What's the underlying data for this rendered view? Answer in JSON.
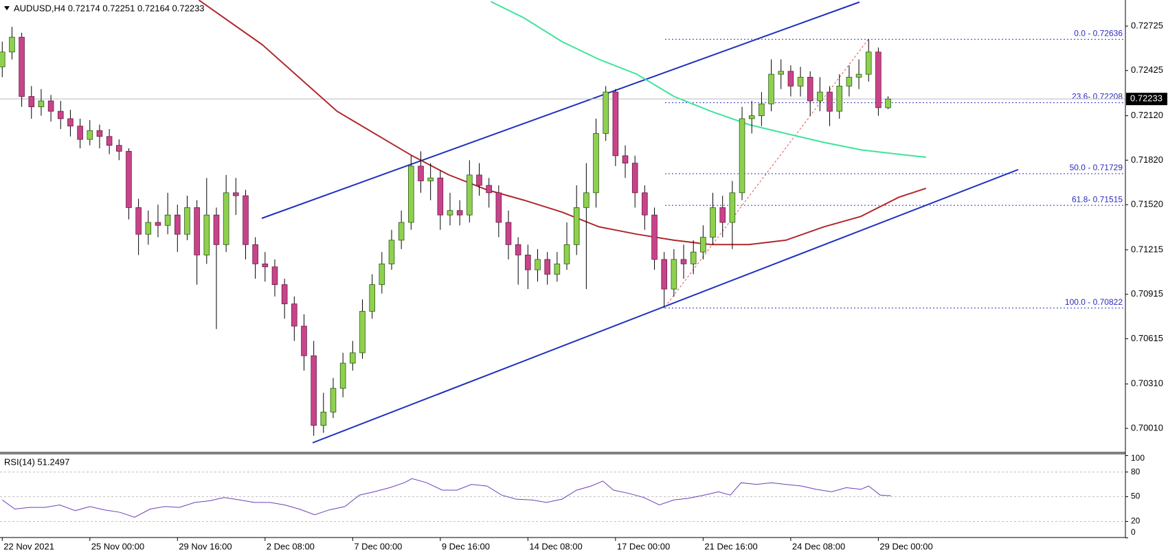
{
  "chart_data": [
    {
      "type": "candlestick",
      "title": "AUDUSD,H4  0.72174 0.72251 0.72164 0.72233",
      "xlim": [
        -0.23,
        115.38
      ],
      "ylim": [
        0.69857,
        0.72901
      ],
      "yticks": [
        0.72725,
        0.72425,
        {
          "value": 0.7212,
          "label": "0.72120"
        },
        {
          "value": 0.7182,
          "label": "0.71820"
        },
        {
          "value": 0.7152,
          "label": "0.71520"
        },
        0.71215,
        0.70915,
        0.70615,
        {
          "value": 0.7031,
          "label": "0.70310"
        },
        {
          "value": 0.7001,
          "label": "0.70010"
        }
      ],
      "up_color": "#8fd14f",
      "down_color": "#c8448a",
      "x": [
        0,
        1,
        2,
        3,
        4,
        5,
        6,
        7,
        8,
        9,
        10,
        11,
        12,
        13,
        14,
        15,
        16,
        17,
        18,
        19,
        20,
        21,
        22,
        23,
        24,
        25,
        26,
        27,
        28,
        29,
        30,
        31,
        32,
        33,
        34,
        35,
        36,
        37,
        38,
        39,
        40,
        41,
        42,
        43,
        44,
        45,
        46,
        47,
        48,
        49,
        50,
        51,
        52,
        53,
        54,
        55,
        56,
        57,
        58,
        59,
        60,
        61,
        62,
        63,
        64,
        65,
        66,
        67,
        68,
        69,
        70,
        71,
        72,
        73,
        74,
        75,
        76,
        77,
        78,
        79,
        80,
        81,
        82,
        83,
        84,
        85,
        86,
        87,
        88,
        89,
        90,
        91
      ],
      "open": [
        0.7245,
        0.7255,
        0.7265,
        0.7225,
        0.7218,
        0.7222,
        0.7215,
        0.721,
        0.7205,
        0.7196,
        0.7202,
        0.7198,
        0.7192,
        0.7188,
        0.715,
        0.7132,
        0.714,
        0.7138,
        0.7145,
        0.7132,
        0.715,
        0.7118,
        0.7145,
        0.7125,
        0.716,
        0.7158,
        0.7125,
        0.7112,
        0.711,
        0.7098,
        0.7085,
        0.707,
        0.705,
        0.7003,
        0.7012,
        0.7028,
        0.7045,
        0.7052,
        0.708,
        0.7098,
        0.7112,
        0.7128,
        0.714,
        0.7178,
        0.7168,
        0.717,
        0.7145,
        0.7148,
        0.7145,
        0.7172,
        0.7165,
        0.716,
        0.714,
        0.7125,
        0.7118,
        0.7108,
        0.7115,
        0.7105,
        0.7112,
        0.7125,
        0.715,
        0.716,
        0.72,
        0.7228,
        0.7185,
        0.718,
        0.716,
        0.7145,
        0.7115,
        0.7095,
        0.7115,
        0.7112,
        0.712,
        0.713,
        0.715,
        0.714,
        0.716,
        0.721,
        0.7212,
        0.722,
        0.724,
        0.7242,
        0.7232,
        0.7238,
        0.7222,
        0.7228,
        0.7215,
        0.7232,
        0.7238,
        0.724,
        0.7255,
        0.72174
      ],
      "high": [
        0.7262,
        0.7272,
        0.7268,
        0.7232,
        0.723,
        0.7226,
        0.7222,
        0.7216,
        0.721,
        0.7209,
        0.7206,
        0.7203,
        0.7196,
        0.719,
        0.7156,
        0.7148,
        0.7152,
        0.716,
        0.7152,
        0.7158,
        0.7155,
        0.717,
        0.715,
        0.7172,
        0.717,
        0.7162,
        0.713,
        0.712,
        0.7115,
        0.7102,
        0.709,
        0.7078,
        0.706,
        0.7025,
        0.7035,
        0.7052,
        0.706,
        0.7088,
        0.7105,
        0.712,
        0.7135,
        0.7148,
        0.7185,
        0.7188,
        0.718,
        0.7175,
        0.716,
        0.7155,
        0.7182,
        0.718,
        0.717,
        0.7165,
        0.7148,
        0.713,
        0.7125,
        0.7122,
        0.712,
        0.712,
        0.714,
        0.7165,
        0.718,
        0.721,
        0.7232,
        0.723,
        0.7192,
        0.7185,
        0.7165,
        0.715,
        0.712,
        0.7122,
        0.7125,
        0.7128,
        0.7138,
        0.716,
        0.7158,
        0.7168,
        0.7218,
        0.7222,
        0.7228,
        0.725,
        0.725,
        0.7246,
        0.7245,
        0.7242,
        0.7238,
        0.7232,
        0.724,
        0.7246,
        0.725,
        0.72636,
        0.7258,
        0.72251
      ],
      "low": [
        0.7238,
        0.725,
        0.7218,
        0.721,
        0.7212,
        0.7208,
        0.7203,
        0.7198,
        0.719,
        0.7192,
        0.719,
        0.7186,
        0.7182,
        0.7142,
        0.7118,
        0.7125,
        0.713,
        0.7132,
        0.712,
        0.7128,
        0.7098,
        0.7112,
        0.7068,
        0.712,
        0.7145,
        0.7115,
        0.7102,
        0.71,
        0.709,
        0.7075,
        0.706,
        0.704,
        0.6996,
        0.6998,
        0.7008,
        0.7022,
        0.704,
        0.7048,
        0.7075,
        0.7092,
        0.7108,
        0.7122,
        0.7135,
        0.716,
        0.7155,
        0.7135,
        0.7138,
        0.7138,
        0.714,
        0.7158,
        0.715,
        0.713,
        0.7115,
        0.7098,
        0.7095,
        0.71,
        0.7098,
        0.71,
        0.7108,
        0.7118,
        0.7095,
        0.715,
        0.7195,
        0.7178,
        0.717,
        0.715,
        0.7135,
        0.7108,
        0.70822,
        0.709,
        0.7102,
        0.7105,
        0.7115,
        0.7125,
        0.713,
        0.7122,
        0.7155,
        0.72,
        0.7205,
        0.7215,
        0.723,
        0.7225,
        0.7225,
        0.7212,
        0.7215,
        0.7205,
        0.721,
        0.7225,
        0.723,
        0.7235,
        0.7212,
        0.72164
      ],
      "close": [
        0.7255,
        0.7265,
        0.7225,
        0.7218,
        0.7222,
        0.7215,
        0.721,
        0.7205,
        0.7196,
        0.7202,
        0.7198,
        0.7192,
        0.7188,
        0.715,
        0.7132,
        0.714,
        0.7138,
        0.7145,
        0.7132,
        0.715,
        0.7118,
        0.7145,
        0.7125,
        0.716,
        0.7158,
        0.7125,
        0.7112,
        0.711,
        0.7098,
        0.7085,
        0.707,
        0.705,
        0.7003,
        0.7012,
        0.7028,
        0.7045,
        0.7052,
        0.708,
        0.7098,
        0.7112,
        0.7128,
        0.714,
        0.7178,
        0.7168,
        0.717,
        0.7145,
        0.7148,
        0.7145,
        0.7172,
        0.7165,
        0.716,
        0.714,
        0.7125,
        0.7118,
        0.7108,
        0.7115,
        0.7105,
        0.7112,
        0.7125,
        0.715,
        0.716,
        0.72,
        0.7228,
        0.7185,
        0.718,
        0.716,
        0.7145,
        0.7115,
        0.7095,
        0.7115,
        0.7112,
        0.712,
        0.713,
        0.715,
        0.714,
        0.716,
        0.721,
        0.7212,
        0.722,
        0.724,
        0.7242,
        0.7232,
        0.7238,
        0.7222,
        0.7228,
        0.7215,
        0.7232,
        0.7238,
        0.724,
        0.7255,
        0.72174,
        0.72233
      ],
      "moving_averages": [
        {
          "color": "#b0272b",
          "x": [
            20.2,
            26.7,
            34.4,
            42.1,
            45.9,
            49.8,
            53.6,
            57.5,
            61.3,
            65.2,
            69,
            72.8,
            76.7,
            80.5,
            84.4,
            88.2,
            92.1,
            94.9
          ],
          "values": [
            0.729,
            0.726,
            0.7215,
            0.7185,
            0.7172,
            0.7162,
            0.7155,
            0.7147,
            0.7137,
            0.7132,
            0.7128,
            0.7125,
            0.7125,
            0.7128,
            0.7137,
            0.7144,
            0.7157,
            0.7163
          ]
        },
        {
          "color": "#3ee39a",
          "x": [
            50.2,
            53.6,
            57.5,
            61.3,
            65.2,
            69,
            72.8,
            76.7,
            80.5,
            84.4,
            88.2,
            92.1,
            94.9
          ],
          "values": [
            0.7289,
            0.7278,
            0.7262,
            0.725,
            0.724,
            0.7225,
            0.7215,
            0.7206,
            0.72,
            0.7194,
            0.7189,
            0.7186,
            0.7184
          ]
        }
      ],
      "fib_color": "#2a2ac0",
      "fib_levels": [
        {
          "value": 0.72636,
          "label": "0.0 - 0.72636"
        },
        {
          "value": 0.72208,
          "label": "23.6- 0.72208"
        },
        {
          "value": 0.71729,
          "label": "50.0 - 0.71729"
        },
        {
          "value": 0.71515,
          "label": "61.8- 0.71515"
        },
        {
          "value": 0.70822,
          "label": "100.0 - 0.70822"
        }
      ],
      "current_price": 0.72233
    },
    {
      "type": "line",
      "title": "RSI(14) 51.2497",
      "xlim": [
        -0.23,
        115.38
      ],
      "ylim": [
        0,
        100
      ],
      "yticks": [
        100,
        80,
        50,
        20,
        0
      ],
      "grid_levels": [
        80,
        50,
        20
      ],
      "color": "#6a3fb8",
      "xticks": [
        {
          "value": 0,
          "label": "22 Nov 2021"
        },
        {
          "value": 9,
          "label": "25 Nov 00:00"
        },
        {
          "value": 18,
          "label": "29 Nov 16:00"
        },
        {
          "value": 27,
          "label": "2 Dec 08:00"
        },
        {
          "value": 36,
          "label": "7 Dec 00:00"
        },
        {
          "value": 45,
          "label": "9 Dec 16:00"
        },
        {
          "value": 54,
          "label": "14 Dec 08:00"
        },
        {
          "value": 63,
          "label": "17 Dec 00:00"
        },
        {
          "value": 72,
          "label": "21 Dec 16:00"
        },
        {
          "value": 81,
          "label": "24 Dec 08:00"
        },
        {
          "value": 90,
          "label": "29 Dec 00:00"
        }
      ],
      "x": [
        0,
        1.3,
        2.8,
        4.4,
        5.9,
        7.5,
        9,
        10.5,
        12.1,
        13.6,
        15.2,
        16.7,
        18.2,
        19.8,
        21.3,
        22.8,
        24.4,
        25.9,
        27.5,
        29,
        30.5,
        32.1,
        33.6,
        35.2,
        36.7,
        38.2,
        39.8,
        41.3,
        42.1,
        43.6,
        45.2,
        46.7,
        48.2,
        49.8,
        51.3,
        52.8,
        54.4,
        55.9,
        57.5,
        59,
        60.5,
        61.7,
        62.8,
        64.4,
        65.9,
        67.5,
        69,
        70.5,
        72.1,
        73.6,
        74.8,
        75.9,
        77.5,
        79,
        80.5,
        82.1,
        83.6,
        85.2,
        86.7,
        88.2,
        89,
        90.2,
        91.3
      ],
      "values": [
        46,
        35,
        37,
        37,
        40,
        33,
        38,
        34,
        31,
        25,
        35,
        38,
        37,
        43,
        45,
        49,
        46,
        43,
        43,
        40,
        35,
        28,
        34,
        38,
        52,
        56,
        61,
        67,
        72,
        67,
        58,
        58,
        65,
        63,
        52,
        47,
        46,
        43,
        47,
        58,
        63,
        69,
        58,
        54,
        49,
        40,
        46,
        48,
        52,
        56,
        52,
        67,
        65,
        67,
        65,
        63,
        59,
        56,
        61,
        59,
        63,
        52,
        51.2497
      ]
    }
  ]
}
